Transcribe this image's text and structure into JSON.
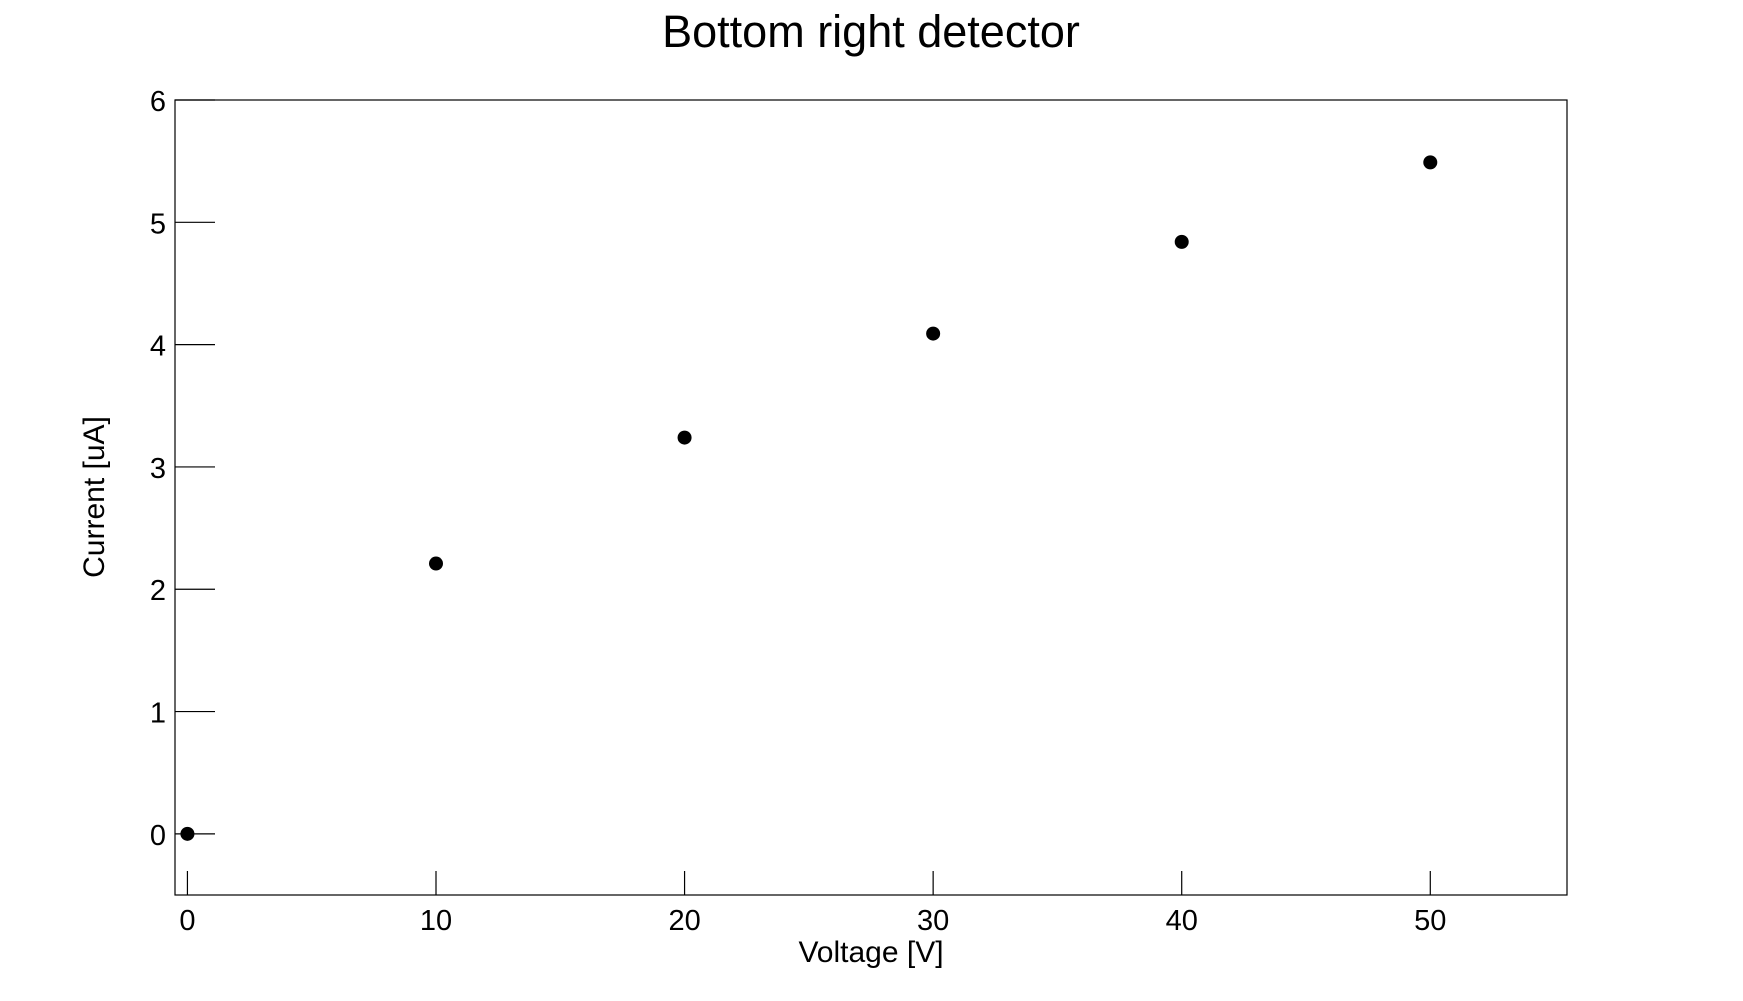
{
  "chart_data": {
    "type": "scatter",
    "title": "Bottom right detector",
    "x_label": "Voltage [V]",
    "y_label": "Current [uA]",
    "series": [
      {
        "name": "Bottom right detector",
        "color": "#000000",
        "x": [
          0,
          10,
          20,
          30,
          40,
          50
        ],
        "values": [
          0,
          2.21,
          3.24,
          4.09,
          4.84,
          5.49
        ]
      }
    ],
    "xlim": [
      -0.5,
      55.5
    ],
    "ylim": [
      -0.5,
      6
    ],
    "xticks": [
      0,
      10,
      20,
      30,
      40,
      50
    ],
    "yticks": [
      0,
      1,
      2,
      3,
      4,
      5,
      6
    ],
    "grid": false
  }
}
